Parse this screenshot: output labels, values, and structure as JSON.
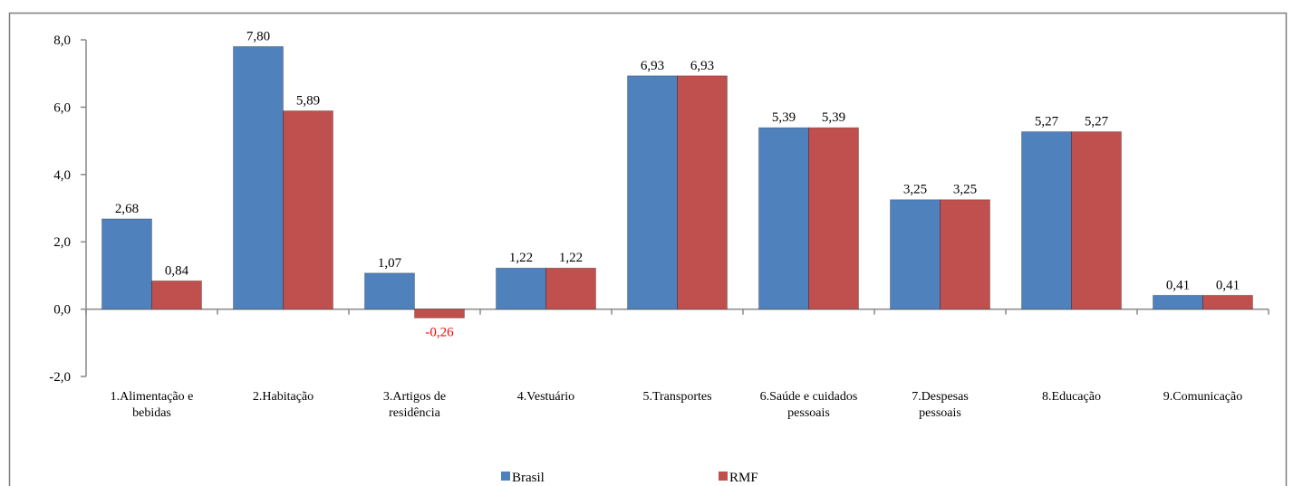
{
  "chart_data": {
    "type": "bar",
    "categories": [
      "1.Alimentação e bebidas",
      "2.Habitação",
      "3.Artigos de residência",
      "4.Vestuário",
      "5.Transportes",
      "6.Saúde e cuidados pessoais",
      "7.Despesas pessoais",
      "8.Educação",
      "9.Comunicação"
    ],
    "series": [
      {
        "name": "Brasil",
        "color": "#4f81bd",
        "values": [
          2.68,
          7.8,
          1.07,
          1.22,
          6.93,
          5.39,
          3.25,
          5.27,
          0.41
        ],
        "value_labels": [
          "2,68",
          "7,80",
          "1,07",
          "1,22",
          "6,93",
          "5,39",
          "3,25",
          "5,27",
          "0,41"
        ]
      },
      {
        "name": "RMF",
        "color": "#c0504d",
        "values": [
          0.84,
          5.89,
          -0.26,
          1.22,
          6.93,
          5.39,
          3.25,
          5.27,
          0.41
        ],
        "value_labels": [
          "0,84",
          "5,89",
          "-0,26",
          "1,22",
          "6,93",
          "5,39",
          "3,25",
          "5,27",
          "0,41"
        ]
      }
    ],
    "negative_label_color": "#ff0000",
    "ylim": [
      -2,
      8
    ],
    "yticks": [
      {
        "value": -2,
        "label": "-2,0"
      },
      {
        "value": 0,
        "label": "0,0"
      },
      {
        "value": 2,
        "label": "2,0"
      },
      {
        "value": 4,
        "label": "4,0"
      },
      {
        "value": 6,
        "label": "6,0"
      },
      {
        "value": 8,
        "label": "8,0"
      }
    ],
    "legend": "bottom"
  }
}
